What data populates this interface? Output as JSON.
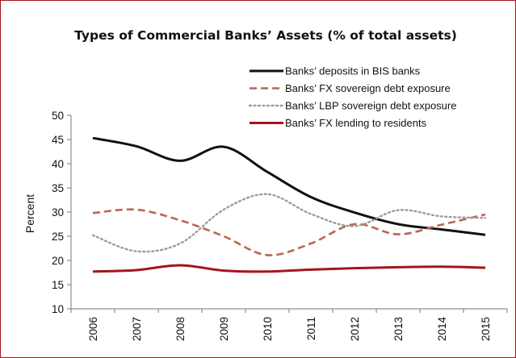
{
  "chart_data": {
    "type": "line",
    "title": "Types of Commercial Banks’ Assets (% of total assets)",
    "xlabel": "",
    "ylabel": "Percent",
    "ylim": [
      10,
      50
    ],
    "yticks": [
      10,
      15,
      20,
      25,
      30,
      35,
      40,
      45,
      50
    ],
    "categories": [
      "2006",
      "2007",
      "2008",
      "2009",
      "2010",
      "2011",
      "2012",
      "2013",
      "2014",
      "2015"
    ],
    "grid": false,
    "legend_position": "top-right",
    "series": [
      {
        "name": "Banks’ deposits in BIS banks",
        "color": "#111111",
        "style": "solid",
        "values": [
          45.3,
          43.6,
          40.6,
          43.5,
          38.3,
          33.1,
          29.9,
          27.5,
          26.4,
          25.3
        ]
      },
      {
        "name": "Banks’ FX sovereign debt exposure",
        "color": "#bd6456",
        "style": "dashed",
        "values": [
          29.8,
          30.5,
          28.3,
          25.0,
          21.1,
          23.5,
          27.5,
          25.4,
          27.4,
          29.5
        ]
      },
      {
        "name": "Banks’ LBP sovereign debt exposure",
        "color": "#9c9c9c",
        "style": "dotted",
        "values": [
          25.2,
          21.9,
          23.5,
          30.5,
          33.7,
          29.6,
          27.1,
          30.4,
          29.1,
          28.8
        ]
      },
      {
        "name": "Banks’ FX lending to residents",
        "color": "#a3161c",
        "style": "solid",
        "values": [
          17.7,
          18.0,
          19.0,
          17.9,
          17.7,
          18.1,
          18.4,
          18.6,
          18.7,
          18.5
        ]
      }
    ]
  }
}
